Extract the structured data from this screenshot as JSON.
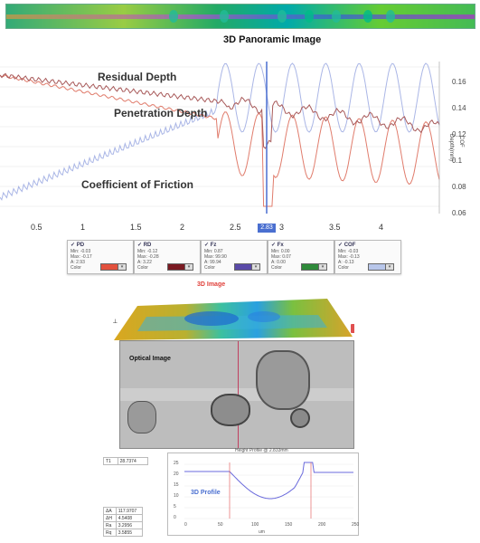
{
  "panorama": {
    "title": "3D Panoramic Image"
  },
  "chart": {
    "labels": {
      "residual": "Residual Depth",
      "penetration": "Penetration Depth",
      "cof": "Coefficient of Friction"
    },
    "x_ticks": [
      "0.5",
      "1",
      "1.5",
      "2",
      "2.5",
      "3",
      "3.5",
      "4"
    ],
    "cursor_value": "2.83",
    "right_ticks": [
      "0.16",
      "0.14",
      "0.12",
      "0.1",
      "0.08",
      "0.06"
    ],
    "right_axis_labels": [
      "Depth(mm)",
      "COF"
    ],
    "colors": {
      "residual": "#a85a5a",
      "penetration": "#e07c6c",
      "cof": "#aab6e6",
      "cursor": "#4a6fd0"
    }
  },
  "legends": [
    {
      "name": "PD",
      "rows": [
        "Min: -0.03",
        "Max: -0.17",
        "A: 2.93",
        "Color"
      ],
      "color": "#e2513d"
    },
    {
      "name": "RD",
      "rows": [
        "Min: -0.12",
        "Max: -0.28",
        "A: 3.22",
        "Color"
      ],
      "color": "#7a1a22"
    },
    {
      "name": "Fz",
      "rows": [
        "Min: 0.87",
        "Max: 99.90",
        "A: 99.94",
        "Color"
      ],
      "color": "#5a4aa8"
    },
    {
      "name": "Fx",
      "rows": [
        "Min: 0.00",
        "Max: 0.07",
        "A: 0.00",
        "Color"
      ],
      "color": "#2f8a3a"
    },
    {
      "name": "COF",
      "rows": [
        "Min: -0.03",
        "Max: -0.13",
        "A: -0.13",
        "Color"
      ],
      "color": "#b8c6ea"
    }
  ],
  "image3d": {
    "label": "3D Image"
  },
  "optical": {
    "label": "Optical Image"
  },
  "profile": {
    "header": "Height Profile @ 2.833mm",
    "label": "3D Profile",
    "xlabel": "um",
    "y_ticks": [
      "25",
      "20",
      "15",
      "10",
      "5",
      "0"
    ],
    "x_ticks": [
      "0",
      "50",
      "100",
      "150",
      "200",
      "250"
    ]
  },
  "left_table": {
    "top_row": [
      "T1",
      "28.7374"
    ],
    "rows": [
      [
        "ΔA",
        "117.9707"
      ],
      [
        "ΔH",
        "4.5408"
      ],
      [
        "Ra",
        "3.2956"
      ],
      [
        "Rq",
        "3.5855"
      ]
    ]
  }
}
